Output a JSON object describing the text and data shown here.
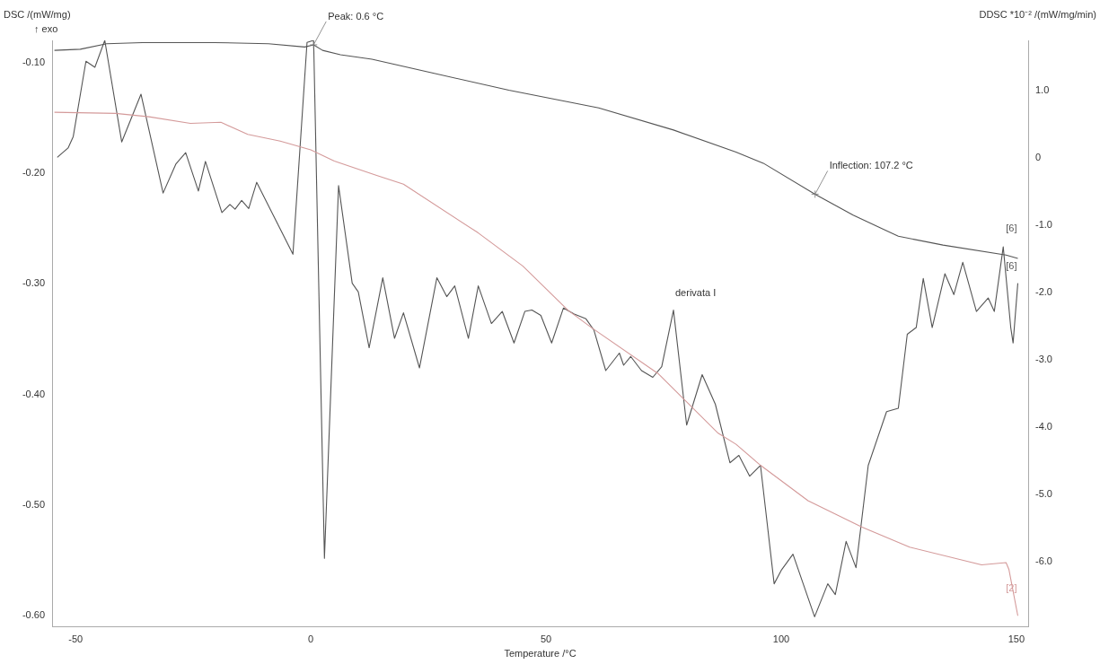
{
  "chart_data": {
    "type": "line",
    "xlabel": "Temperature /°C",
    "ylabel": "DSC /(mW/mg)",
    "y2label": "DDSC *10⁻² /(mW/mg/min)",
    "xlim": [
      -55,
      152.5
    ],
    "xticks": [
      -50,
      0,
      50,
      100,
      150
    ],
    "ylim": [
      -0.61,
      -0.08
    ],
    "yticks": [
      {
        "value": -0.1,
        "label": "-0.10"
      },
      {
        "value": -0.2,
        "label": "-0.20"
      },
      {
        "value": -0.3,
        "label": "-0.30"
      },
      {
        "value": -0.4,
        "label": "-0.40"
      },
      {
        "value": -0.5,
        "label": "-0.50"
      },
      {
        "value": -0.6,
        "label": "-0.60"
      }
    ],
    "y2lim": [
      -6.97,
      1.75
    ],
    "y2ticks": [
      {
        "value": 1,
        "label": "1.0"
      },
      0,
      {
        "value": -1,
        "label": "-1.0"
      },
      {
        "value": -2,
        "label": "-2.0"
      },
      {
        "value": -3,
        "label": "-3.0"
      },
      {
        "value": -4,
        "label": "-4.0"
      },
      {
        "value": -5,
        "label": "-5.0"
      },
      {
        "value": -6,
        "label": "-6.0"
      }
    ],
    "grid": false,
    "legend": false,
    "marker": "none",
    "line_style": "solid",
    "series": [
      {
        "name": "[6]",
        "color": "#555555",
        "x": [
          -54.5,
          -49,
          -43.4,
          -35.8,
          -20.5,
          -9,
          -1.3,
          0.6,
          2.5,
          6.3,
          13,
          25.4,
          42.1,
          61.2,
          77.1,
          90.4,
          96.2,
          107.2,
          115.3,
          124.9,
          134.4,
          147.8,
          150.3
        ],
        "values": [
          -0.089,
          -0.088,
          -0.083,
          -0.082,
          -0.082,
          -0.083,
          -0.086,
          -0.084,
          -0.089,
          -0.093,
          -0.097,
          -0.109,
          -0.125,
          -0.141,
          -0.161,
          -0.181,
          -0.191,
          -0.219,
          -0.238,
          -0.257,
          -0.265,
          -0.274,
          -0.277
        ]
      },
      {
        "name": "[2]",
        "color": "#d49a9a",
        "x": [
          -54.5,
          -41.5,
          -34.4,
          -25.6,
          -19.1,
          -13.4,
          -6.5,
          0,
          5,
          14,
          19.7,
          35.6,
          45.1,
          54.7,
          59.8,
          73.8,
          86.6,
          90.4,
          95.6,
          105.7,
          117.2,
          127.3,
          142.6,
          147.8,
          148.4,
          150.3
        ],
        "values": [
          -0.145,
          -0.146,
          -0.149,
          -0.155,
          -0.154,
          -0.165,
          -0.171,
          -0.179,
          -0.189,
          -0.202,
          -0.21,
          -0.254,
          -0.284,
          -0.324,
          -0.34,
          -0.381,
          -0.435,
          -0.445,
          -0.464,
          -0.496,
          -0.52,
          -0.538,
          -0.554,
          -0.552,
          -0.558,
          -0.6
        ]
      },
      {
        "name": "[6]",
        "color": "#555555",
        "axis": "y2",
        "x": [
          -53.9,
          -51.6,
          -50.5,
          -47.8,
          -45.9,
          -43.8,
          -40.2,
          -36.1,
          -31.4,
          -28.7,
          -26.6,
          -23.9,
          -22.4,
          -18.9,
          -17.2,
          -16.1,
          -14.7,
          -13.2,
          -11.5,
          -8.4,
          -3.8,
          -0.8,
          0.6,
          2.9,
          5.9,
          8.8,
          10.1,
          12.4,
          15.3,
          17.8,
          19.7,
          23.1,
          26.8,
          28.9,
          30.6,
          33.5,
          35.6,
          38.4,
          40.7,
          43.2,
          45.5,
          47,
          48.9,
          51.2,
          53.7,
          56,
          58.5,
          60.2,
          62.7,
          64.6,
          65.6,
          66.5,
          68,
          70.3,
          72.7,
          74.6,
          77.1,
          79.9,
          83.2,
          86,
          89.1,
          91,
          93.3,
          95.6,
          98.5,
          100,
          102.5,
          107.1,
          109.9,
          111.5,
          113.8,
          115.9,
          118.5,
          122.4,
          124.9,
          126.8,
          128.7,
          130.2,
          132.1,
          134.8,
          136.7,
          138.6,
          141.5,
          144,
          145.3,
          147.2,
          148.8,
          149.3,
          150.3
        ],
        "values": [
          0.01,
          0.15,
          0.32,
          1.44,
          1.35,
          1.75,
          0.24,
          0.95,
          -0.52,
          -0.09,
          0.08,
          -0.49,
          -0.05,
          -0.81,
          -0.69,
          -0.76,
          -0.63,
          -0.75,
          -0.36,
          -0.79,
          -1.43,
          1.72,
          1.75,
          -5.95,
          -0.41,
          -1.86,
          -1.99,
          -2.82,
          -1.78,
          -2.68,
          -2.3,
          -3.12,
          -1.78,
          -2.06,
          -1.9,
          -2.68,
          -1.9,
          -2.46,
          -2.28,
          -2.75,
          -2.28,
          -2.26,
          -2.34,
          -2.75,
          -2.23,
          -2.32,
          -2.39,
          -2.56,
          -3.16,
          -2.99,
          -2.9,
          -3.08,
          -2.95,
          -3.16,
          -3.26,
          -3.1,
          -2.26,
          -3.97,
          -3.22,
          -3.66,
          -4.53,
          -4.42,
          -4.73,
          -4.57,
          -6.33,
          -6.13,
          -5.89,
          -6.82,
          -6.33,
          -6.49,
          -5.7,
          -6.09,
          -4.57,
          -3.77,
          -3.72,
          -2.62,
          -2.52,
          -1.79,
          -2.52,
          -1.72,
          -2.03,
          -1.55,
          -2.28,
          -2.08,
          -2.28,
          -1.32,
          -2.52,
          -2.75,
          -1.86
        ]
      }
    ],
    "annotations": [
      "↑ exo",
      {
        "text": "Peak: 0.6 °C",
        "x": 0.6,
        "y": -0.084
      },
      {
        "text": "Inflection: 107.2 °C",
        "x": 107.2,
        "y": -0.219
      },
      "derivata I"
    ]
  }
}
